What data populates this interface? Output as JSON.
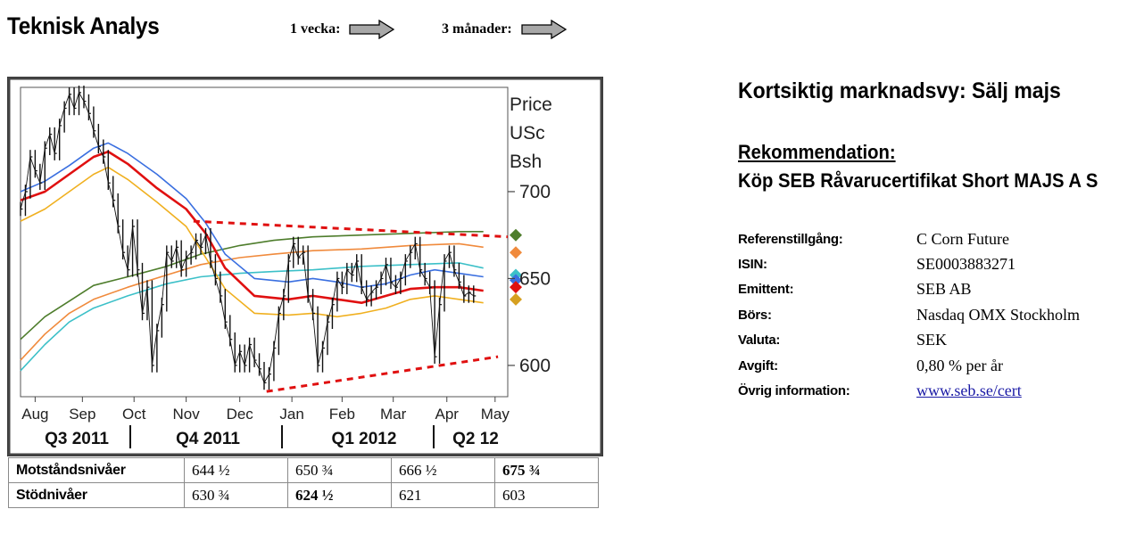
{
  "header": {
    "title": "Teknisk Analys",
    "week_label": "1 vecka:",
    "months_label": "3 månader:"
  },
  "chart_data": {
    "type": "line",
    "price_label": [
      "Price",
      "USc",
      "Bsh"
    ],
    "y_ticks": [
      600,
      650,
      700
    ],
    "ylim": [
      582,
      760
    ],
    "month_labels": [
      "Aug",
      "Sep",
      "Oct",
      "Nov",
      "Dec",
      "Jan",
      "Feb",
      "Mar",
      "Apr",
      "May"
    ],
    "quarter_labels": [
      "Q3 2011",
      "Q4 2011",
      "Q1 2012",
      "Q2 12"
    ],
    "x_range": [
      0,
      100
    ],
    "month_x": [
      3,
      12.7,
      23.3,
      34,
      45,
      55.7,
      66,
      76.5,
      87.5,
      97.4
    ],
    "price_close": [
      [
        0,
        690
      ],
      [
        1,
        700
      ],
      [
        2,
        720
      ],
      [
        3,
        712
      ],
      [
        4,
        705
      ],
      [
        5,
        725
      ],
      [
        6,
        733
      ],
      [
        7,
        722
      ],
      [
        8,
        738
      ],
      [
        9,
        748
      ],
      [
        10,
        756
      ],
      [
        11,
        748
      ],
      [
        12,
        757
      ],
      [
        13,
        752
      ],
      [
        14,
        745
      ],
      [
        15,
        735
      ],
      [
        16,
        726
      ],
      [
        17,
        720
      ],
      [
        18,
        705
      ],
      [
        19,
        695
      ],
      [
        20,
        680
      ],
      [
        21,
        665
      ],
      [
        22,
        655
      ],
      [
        23,
        680
      ],
      [
        24,
        655
      ],
      [
        25,
        630
      ],
      [
        26,
        645
      ],
      [
        27,
        600
      ],
      [
        28,
        620
      ],
      [
        29,
        635
      ],
      [
        30,
        665
      ],
      [
        31,
        660
      ],
      [
        32,
        668
      ],
      [
        33,
        655
      ],
      [
        34,
        662
      ],
      [
        35,
        665
      ],
      [
        36,
        672
      ],
      [
        37,
        668
      ],
      [
        38,
        675
      ],
      [
        39,
        660
      ],
      [
        40,
        650
      ],
      [
        41,
        640
      ],
      [
        42,
        625
      ],
      [
        43,
        615
      ],
      [
        44,
        600
      ],
      [
        45,
        608
      ],
      [
        46,
        600
      ],
      [
        47,
        612
      ],
      [
        48,
        603
      ],
      [
        49,
        598
      ],
      [
        50,
        590
      ],
      [
        51,
        595
      ],
      [
        52,
        610
      ],
      [
        53,
        630
      ],
      [
        54,
        640
      ],
      [
        55,
        660
      ],
      [
        56,
        670
      ],
      [
        57,
        662
      ],
      [
        58,
        665
      ],
      [
        59,
        640
      ],
      [
        60,
        630
      ],
      [
        61,
        600
      ],
      [
        62,
        610
      ],
      [
        63,
        625
      ],
      [
        64,
        635
      ],
      [
        65,
        650
      ],
      [
        66,
        645
      ],
      [
        67,
        655
      ],
      [
        68,
        652
      ],
      [
        69,
        660
      ],
      [
        70,
        645
      ],
      [
        71,
        638
      ],
      [
        72,
        642
      ],
      [
        73,
        645
      ],
      [
        74,
        650
      ],
      [
        75,
        658
      ],
      [
        76,
        648
      ],
      [
        77,
        645
      ],
      [
        78,
        650
      ],
      [
        79,
        660
      ],
      [
        80,
        665
      ],
      [
        81,
        670
      ],
      [
        82,
        655
      ],
      [
        83,
        650
      ],
      [
        84,
        645
      ],
      [
        85,
        605
      ],
      [
        86,
        635
      ],
      [
        87,
        660
      ],
      [
        88,
        665
      ],
      [
        89,
        655
      ],
      [
        90,
        648
      ],
      [
        91,
        640
      ],
      [
        92,
        642
      ],
      [
        93,
        640
      ]
    ],
    "series": [
      {
        "values": [
          [
            0,
            615
          ],
          [
            5,
            628
          ],
          [
            10,
            637
          ],
          [
            15,
            646
          ],
          [
            22,
            651
          ],
          [
            30,
            657
          ],
          [
            37,
            664
          ],
          [
            45,
            669
          ],
          [
            52,
            672
          ],
          [
            60,
            674
          ],
          [
            70,
            675
          ],
          [
            80,
            676
          ],
          [
            90,
            677
          ],
          [
            95,
            677
          ]
        ],
        "color": "#4e7d2c"
      },
      {
        "values": [
          [
            0,
            603
          ],
          [
            5,
            618
          ],
          [
            10,
            630
          ],
          [
            15,
            638
          ],
          [
            22,
            645
          ],
          [
            30,
            652
          ],
          [
            37,
            658
          ],
          [
            45,
            662
          ],
          [
            52,
            664
          ],
          [
            60,
            666
          ],
          [
            70,
            667
          ],
          [
            80,
            669
          ],
          [
            90,
            670
          ],
          [
            95,
            668
          ]
        ],
        "color": "#f08a3c"
      },
      {
        "values": [
          [
            0,
            597
          ],
          [
            5,
            612
          ],
          [
            10,
            625
          ],
          [
            15,
            633
          ],
          [
            22,
            640
          ],
          [
            30,
            647
          ],
          [
            37,
            651
          ],
          [
            45,
            653
          ],
          [
            52,
            654
          ],
          [
            60,
            655
          ],
          [
            70,
            657
          ],
          [
            80,
            658
          ],
          [
            90,
            659
          ],
          [
            95,
            656
          ]
        ],
        "color": "#3cc0c8"
      },
      {
        "values": [
          [
            0,
            700
          ],
          [
            5,
            706
          ],
          [
            10,
            715
          ],
          [
            15,
            725
          ],
          [
            18,
            728
          ],
          [
            22,
            722
          ],
          [
            28,
            710
          ],
          [
            34,
            696
          ],
          [
            38,
            682
          ],
          [
            42,
            664
          ],
          [
            48,
            650
          ],
          [
            55,
            648
          ],
          [
            60,
            650
          ],
          [
            65,
            648
          ],
          [
            70,
            645
          ],
          [
            75,
            647
          ],
          [
            80,
            652
          ],
          [
            85,
            655
          ],
          [
            90,
            653
          ],
          [
            95,
            651
          ]
        ],
        "color": "#3a6fe0"
      },
      {
        "values": [
          [
            0,
            695
          ],
          [
            5,
            700
          ],
          [
            10,
            710
          ],
          [
            15,
            720
          ],
          [
            18,
            723
          ],
          [
            22,
            716
          ],
          [
            28,
            702
          ],
          [
            34,
            690
          ],
          [
            38,
            676
          ],
          [
            42,
            656
          ],
          [
            48,
            640
          ],
          [
            55,
            638
          ],
          [
            60,
            640
          ],
          [
            65,
            638
          ],
          [
            70,
            636
          ],
          [
            75,
            640
          ],
          [
            80,
            644
          ],
          [
            85,
            645
          ],
          [
            90,
            645
          ],
          [
            95,
            643
          ]
        ],
        "color": "#e01010"
      },
      {
        "values": [
          [
            0,
            683
          ],
          [
            5,
            690
          ],
          [
            10,
            700
          ],
          [
            15,
            710
          ],
          [
            18,
            714
          ],
          [
            22,
            707
          ],
          [
            28,
            694
          ],
          [
            34,
            680
          ],
          [
            38,
            662
          ],
          [
            42,
            644
          ],
          [
            48,
            630
          ],
          [
            55,
            629
          ],
          [
            60,
            630
          ],
          [
            65,
            628
          ],
          [
            70,
            630
          ],
          [
            75,
            633
          ],
          [
            80,
            638
          ],
          [
            85,
            640
          ],
          [
            90,
            638
          ],
          [
            95,
            636
          ]
        ],
        "color": "#f0b020"
      }
    ],
    "resistance_line": [
      [
        35.5,
        683
      ],
      [
        100,
        674
      ]
    ],
    "support_line": [
      [
        50.5,
        585
      ],
      [
        98,
        605
      ]
    ],
    "end_markers": [
      {
        "value": 675,
        "color": "#4e7d2c"
      },
      {
        "value": 665,
        "color": "#f08a3c"
      },
      {
        "value": 652,
        "color": "#3cc0c8"
      },
      {
        "value": 649,
        "color": "#3a6fe0"
      },
      {
        "value": 645,
        "color": "#e01010"
      },
      {
        "value": 638,
        "color": "#d6a020"
      }
    ]
  },
  "levels_table": {
    "resistance": {
      "label": "Motståndsnivåer",
      "values": [
        "644 ½",
        "650 ¾",
        "666 ½",
        "675 ¾"
      ]
    },
    "support": {
      "label": "Stödnivåer",
      "values": [
        "630 ¾",
        "624 ½",
        "621",
        "603"
      ]
    }
  },
  "right": {
    "market_view": "Kortsiktig marknadsvy: Sälj majs",
    "recommendation_heading": "Rekommendation:",
    "recommendation": "Köp SEB Råvarucertifikat Short MAJS A S",
    "info": [
      {
        "key": "Referenstillgång:",
        "value": "C Corn Future"
      },
      {
        "key": "ISIN:",
        "value": "SE0003883271"
      },
      {
        "key": "Emittent:",
        "value": "SEB AB"
      },
      {
        "key": "Börs:",
        "value": "Nasdaq OMX Stockholm"
      },
      {
        "key": "Valuta:",
        "value": "SEK"
      },
      {
        "key": "Avgift:",
        "value": "0,80 % per år"
      },
      {
        "key": "Övrig information:",
        "value": "www.seb.se/cert"
      }
    ]
  }
}
